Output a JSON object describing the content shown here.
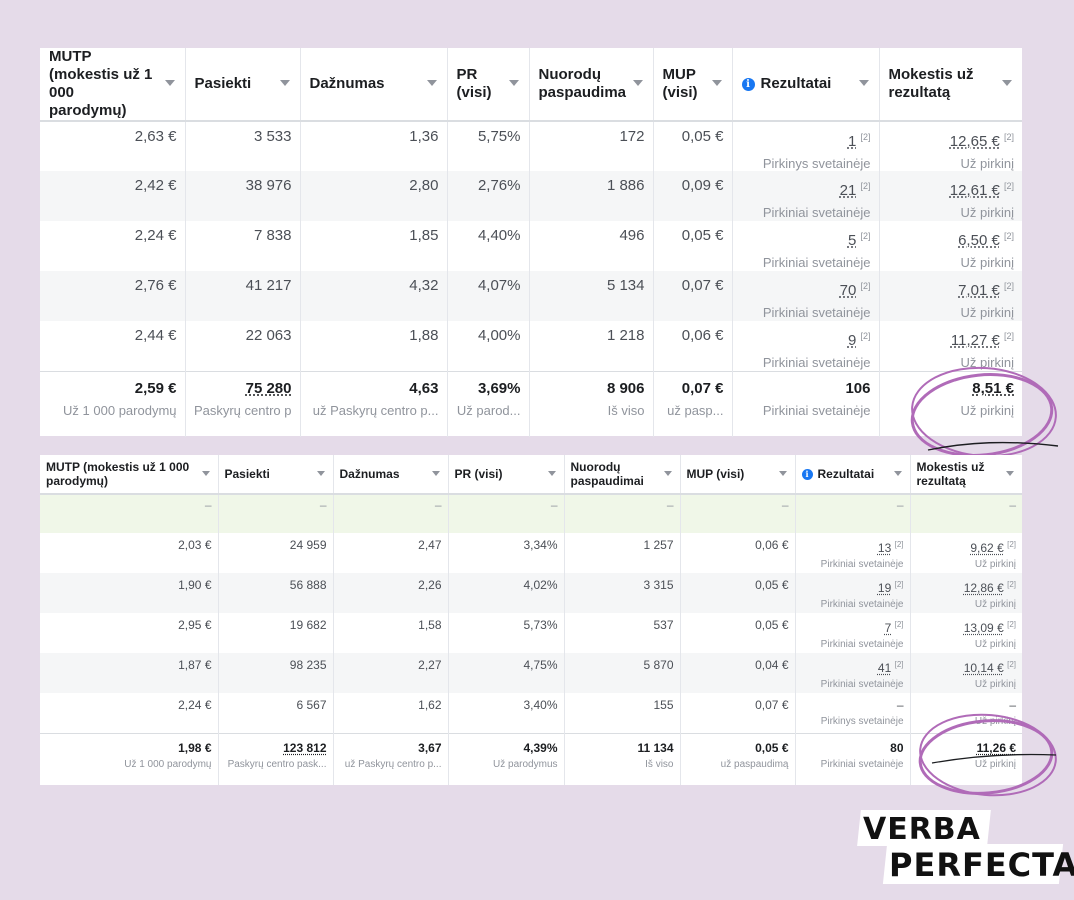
{
  "top_table": {
    "columns": [
      {
        "label": "MUTP (mokestis už 1 000 parodymų)",
        "info": false
      },
      {
        "label": "Pasiekti",
        "info": false
      },
      {
        "label": "Dažnumas",
        "info": false
      },
      {
        "label": "PR (visi)",
        "info": false
      },
      {
        "label": "Nuorodų paspaudima",
        "info": false
      },
      {
        "label": "MUP (visi)",
        "info": false
      },
      {
        "label": "Rezultatai",
        "info": true
      },
      {
        "label": "Mokestis už rezultatą",
        "info": false
      }
    ],
    "rows": [
      {
        "mutp": "2,63 €",
        "reach": "3 533",
        "freq": "1,36",
        "pr": "5,75%",
        "clicks": "172",
        "mup": "0,05 €",
        "results": "1",
        "results_sub": "Pirkinys svetainėje",
        "cost": "12,65 €",
        "cost_sub": "Už pirkinį"
      },
      {
        "mutp": "2,42 €",
        "reach": "38 976",
        "freq": "2,80",
        "pr": "2,76%",
        "clicks": "1 886",
        "mup": "0,09 €",
        "results": "21",
        "results_sub": "Pirkiniai svetainėje",
        "cost": "12,61 €",
        "cost_sub": "Už pirkinį"
      },
      {
        "mutp": "2,24 €",
        "reach": "7 838",
        "freq": "1,85",
        "pr": "4,40%",
        "clicks": "496",
        "mup": "0,05 €",
        "results": "5",
        "results_sub": "Pirkiniai svetainėje",
        "cost": "6,50 €",
        "cost_sub": "Už pirkinį"
      },
      {
        "mutp": "2,76 €",
        "reach": "41 217",
        "freq": "4,32",
        "pr": "4,07%",
        "clicks": "5 134",
        "mup": "0,07 €",
        "results": "70",
        "results_sub": "Pirkiniai svetainėje",
        "cost": "7,01 €",
        "cost_sub": "Už pirkinį"
      },
      {
        "mutp": "2,44 €",
        "reach": "22 063",
        "freq": "1,88",
        "pr": "4,00%",
        "clicks": "1 218",
        "mup": "0,06 €",
        "results": "9",
        "results_sub": "Pirkiniai svetainėje",
        "cost": "11,27 €",
        "cost_sub": "Už pirkinį"
      }
    ],
    "total": {
      "mutp": "2,59 €",
      "mutp_sub": "Už 1 000 parodymų",
      "reach": "75 280",
      "reach_sub": "Paskyrų centro p",
      "freq": "4,63",
      "freq_sub": "už Paskyrų centro p...",
      "pr": "3,69%",
      "pr_sub": "Už parod...",
      "clicks": "8 906",
      "clicks_sub": "Iš viso",
      "mup": "0,07 €",
      "mup_sub": "už pasp...",
      "results": "106",
      "results_sub": "Pirkiniai svetainėje",
      "cost": "8,51 €",
      "cost_sub": "Už pirkinį"
    }
  },
  "bottom_table": {
    "columns": [
      {
        "label": "MUTP (mokestis už 1 000 parodymų)",
        "info": false
      },
      {
        "label": "Pasiekti",
        "info": false
      },
      {
        "label": "Dažnumas",
        "info": false
      },
      {
        "label": "PR (visi)",
        "info": false
      },
      {
        "label": "Nuorodų paspaudimai",
        "info": false
      },
      {
        "label": "MUP (visi)",
        "info": false
      },
      {
        "label": "Rezultatai",
        "info": true
      },
      {
        "label": "Mokestis už rezultatą",
        "info": false
      }
    ],
    "empty_row": [
      "–",
      "–",
      "–",
      "–",
      "–",
      "–",
      "–",
      "–"
    ],
    "rows": [
      {
        "mutp": "2,03 €",
        "reach": "24 959",
        "freq": "2,47",
        "pr": "3,34%",
        "clicks": "1 257",
        "mup": "0,06 €",
        "results": "13",
        "results_sub": "Pirkiniai svetainėje",
        "cost": "9,62 €",
        "cost_sub": "Už pirkinį"
      },
      {
        "mutp": "1,90 €",
        "reach": "56 888",
        "freq": "2,26",
        "pr": "4,02%",
        "clicks": "3 315",
        "mup": "0,05 €",
        "results": "19",
        "results_sub": "Pirkiniai svetainėje",
        "cost": "12,86 €",
        "cost_sub": "Už pirkinį"
      },
      {
        "mutp": "2,95 €",
        "reach": "19 682",
        "freq": "1,58",
        "pr": "5,73%",
        "clicks": "537",
        "mup": "0,05 €",
        "results": "7",
        "results_sub": "Pirkiniai svetainėje",
        "cost": "13,09 €",
        "cost_sub": "Už pirkinį"
      },
      {
        "mutp": "1,87 €",
        "reach": "98 235",
        "freq": "2,27",
        "pr": "4,75%",
        "clicks": "5 870",
        "mup": "0,04 €",
        "results": "41",
        "results_sub": "Pirkiniai svetainėje",
        "cost": "10,14 €",
        "cost_sub": "Už pirkinį"
      },
      {
        "mutp": "2,24 €",
        "reach": "6 567",
        "freq": "1,62",
        "pr": "3,40%",
        "clicks": "155",
        "mup": "0,07 €",
        "results": "–",
        "results_sub": "Pirkinys svetainėje",
        "cost": "–",
        "cost_sub": "Už pirkinį"
      }
    ],
    "total": {
      "mutp": "1,98 €",
      "mutp_sub": "Už 1 000 parodymų",
      "reach": "123 812",
      "reach_sub": "Paskyrų centro pask...",
      "freq": "3,67",
      "freq_sub": "už Paskyrų centro p...",
      "pr": "4,39%",
      "pr_sub": "Už parodymus",
      "clicks": "11 134",
      "clicks_sub": "Iš viso",
      "mup": "0,05 €",
      "mup_sub": "už paspaudimą",
      "results": "80",
      "results_sub": "Pirkiniai svetainėje",
      "cost": "11,26 €",
      "cost_sub": "Už pirkinį"
    }
  },
  "footnote_marker": "[2]",
  "info_icon_glyph": "i",
  "highlight_color": "#b06bb8",
  "logo": {
    "line1": "VERBA",
    "line2": "PERFECTA"
  }
}
